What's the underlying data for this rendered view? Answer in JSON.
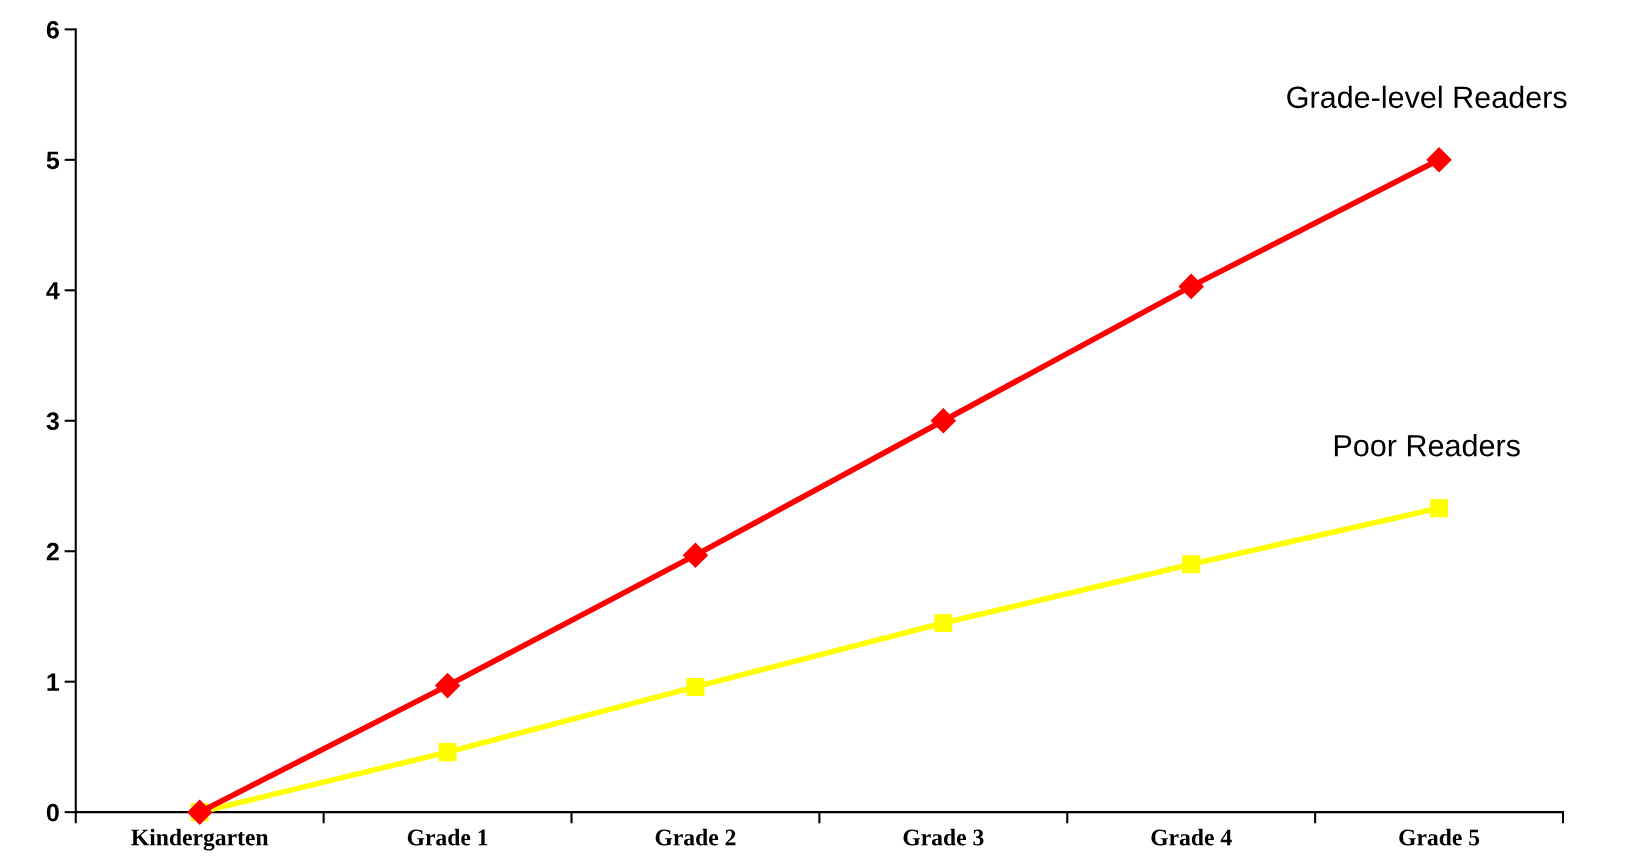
{
  "chart_data": {
    "type": "line",
    "categories": [
      "Kindergarten",
      "Grade 1",
      "Grade 2",
      "Grade 3",
      "Grade 4",
      "Grade 5"
    ],
    "ylim": [
      0,
      6
    ],
    "yticks": [
      0,
      1,
      2,
      3,
      4,
      5,
      6
    ],
    "grid": false,
    "legend": false,
    "series": [
      {
        "name": "Grade-level Readers",
        "color": "#ff0000",
        "marker": "diamond",
        "values": [
          0,
          0.97,
          1.97,
          3.0,
          4.03,
          5.0
        ]
      },
      {
        "name": "Poor Readers",
        "color": "#ffff00",
        "marker": "square",
        "values": [
          0,
          0.46,
          0.96,
          1.45,
          1.9,
          2.33
        ]
      }
    ]
  }
}
